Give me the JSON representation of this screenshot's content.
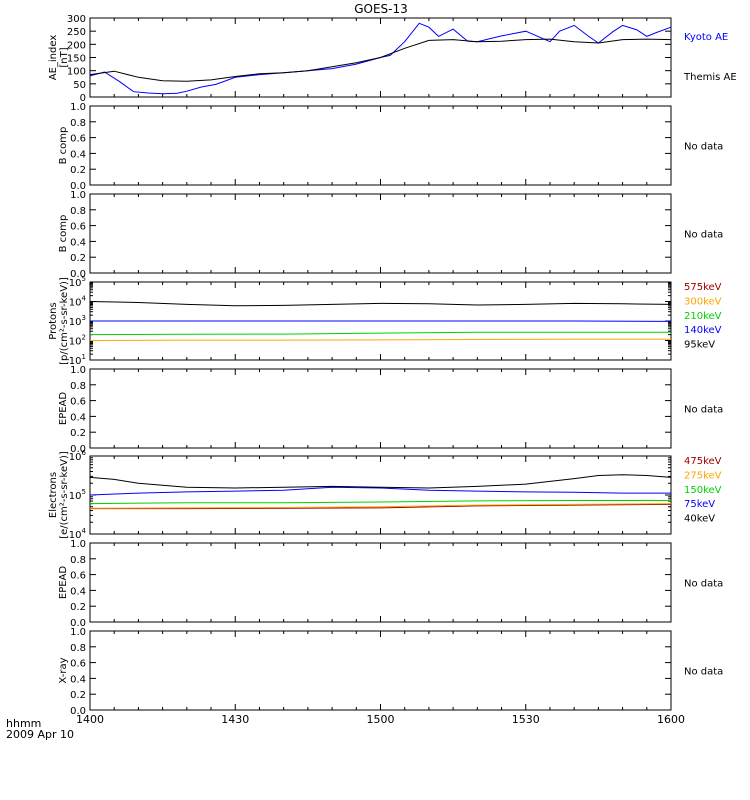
{
  "title": "GOES-13",
  "time_axis": {
    "unit_label": "hhmm",
    "date_label": "2009 Apr 10",
    "ticks": [
      "1400",
      "1430",
      "1500",
      "1530",
      "1600"
    ],
    "range_minutes": [
      0,
      120
    ]
  },
  "colors": {
    "black": "#000000",
    "blue": "#0000ff",
    "green": "#00d200",
    "orange": "#ffa500",
    "red": "#c80000",
    "darkred": "#a00000"
  },
  "chart_data": [
    {
      "type": "line",
      "ylabel_lines": [
        "AE_index",
        "[nT]"
      ],
      "yticks": [
        "0",
        "50",
        "100",
        "150",
        "200",
        "250",
        "300"
      ],
      "ylim": [
        0,
        300
      ],
      "scale": "linear",
      "series": [
        {
          "name": "Kyoto AE",
          "color": "#0000ff",
          "x": [
            0,
            3,
            6,
            9,
            12,
            15,
            18,
            20,
            23,
            26,
            30,
            35,
            40,
            45,
            50,
            55,
            60,
            62,
            65,
            68,
            70,
            72,
            75,
            78,
            80,
            85,
            90,
            95,
            97,
            100,
            103,
            105,
            108,
            110,
            113,
            115,
            117,
            120
          ],
          "y": [
            80,
            95,
            60,
            20,
            15,
            12,
            14,
            22,
            38,
            48,
            75,
            85,
            92,
            100,
            108,
            125,
            150,
            158,
            210,
            280,
            265,
            230,
            258,
            212,
            210,
            232,
            250,
            210,
            250,
            272,
            230,
            205,
            248,
            272,
            255,
            230,
            245,
            265
          ]
        },
        {
          "name": "Themis AE",
          "color": "#000000",
          "x": [
            0,
            5,
            10,
            15,
            20,
            25,
            30,
            35,
            40,
            45,
            50,
            55,
            60,
            65,
            70,
            75,
            80,
            85,
            90,
            95,
            100,
            105,
            110,
            115,
            120
          ],
          "y": [
            85,
            98,
            75,
            62,
            60,
            65,
            78,
            88,
            92,
            100,
            115,
            130,
            150,
            185,
            215,
            218,
            210,
            212,
            218,
            220,
            210,
            205,
            218,
            220,
            218
          ]
        }
      ],
      "legend_placement": "right"
    },
    {
      "type": "line",
      "ylabel_lines": [
        "B comp"
      ],
      "yticks": [
        "0.0",
        "0.2",
        "0.4",
        "0.6",
        "0.8",
        "1.0"
      ],
      "ylim": [
        0,
        1
      ],
      "scale": "linear",
      "series": [],
      "no_data": "No data"
    },
    {
      "type": "line",
      "ylabel_lines": [
        "B comp"
      ],
      "yticks": [
        "0.0",
        "0.2",
        "0.4",
        "0.6",
        "0.8",
        "1.0"
      ],
      "ylim": [
        0,
        1
      ],
      "scale": "linear",
      "series": [],
      "no_data": "No data"
    },
    {
      "type": "line",
      "ylabel_lines": [
        "Protons",
        "[p/(cm²-s-sr-keV)]"
      ],
      "yticks": [
        {
          "base": "10",
          "exp": "1"
        },
        {
          "base": "10",
          "exp": "2"
        },
        {
          "base": "10",
          "exp": "3"
        },
        {
          "base": "10",
          "exp": "4"
        },
        {
          "base": "10",
          "exp": "5"
        }
      ],
      "ylim": [
        1,
        5
      ],
      "scale": "log10",
      "series": [
        {
          "name": "575keV",
          "color": "#a00000",
          "x": [],
          "y": []
        },
        {
          "name": "300keV",
          "color": "#ffa500",
          "x": [
            0,
            20,
            40,
            60,
            80,
            100,
            120
          ],
          "y": [
            2.0,
            2.02,
            2.02,
            2.03,
            2.05,
            2.06,
            2.06
          ]
        },
        {
          "name": "210keV",
          "color": "#00d200",
          "x": [
            0,
            20,
            40,
            60,
            80,
            100,
            120
          ],
          "y": [
            2.3,
            2.32,
            2.33,
            2.38,
            2.42,
            2.42,
            2.42
          ]
        },
        {
          "name": "140keV",
          "color": "#0000ff",
          "x": [
            0,
            20,
            40,
            60,
            80,
            100,
            120
          ],
          "y": [
            3.0,
            3.0,
            3.0,
            3.0,
            3.0,
            3.0,
            2.98
          ]
        },
        {
          "name": "95keV",
          "color": "#000000",
          "x": [
            0,
            10,
            20,
            30,
            40,
            50,
            60,
            70,
            80,
            90,
            100,
            110,
            120
          ],
          "y": [
            4.0,
            3.95,
            3.85,
            3.78,
            3.8,
            3.85,
            3.9,
            3.88,
            3.82,
            3.85,
            3.9,
            3.88,
            3.85
          ]
        }
      ],
      "legend_placement": "right"
    },
    {
      "type": "line",
      "ylabel_lines": [
        "EPEAD"
      ],
      "yticks": [
        "0.0",
        "0.2",
        "0.4",
        "0.6",
        "0.8",
        "1.0"
      ],
      "ylim": [
        0,
        1
      ],
      "scale": "linear",
      "series": [],
      "no_data": "No data"
    },
    {
      "type": "line",
      "ylabel_lines": [
        "Electrons",
        "[e/(cm²-s-sr-keV)]"
      ],
      "yticks": [
        {
          "base": "10",
          "exp": "4"
        },
        {
          "base": "10",
          "exp": "5"
        },
        {
          "base": "10",
          "exp": "6"
        }
      ],
      "ylim": [
        4,
        6
      ],
      "scale": "log10",
      "series": [
        {
          "name": "475keV",
          "color": "#a00000",
          "x": [
            0,
            20,
            40,
            60,
            80,
            100,
            120
          ],
          "y": [
            4.65,
            4.65,
            4.66,
            4.67,
            4.72,
            4.74,
            4.76
          ]
        },
        {
          "name": "275keV",
          "color": "#ffa500",
          "x": [
            0,
            20,
            40,
            60,
            80,
            100,
            120
          ],
          "y": [
            4.66,
            4.67,
            4.68,
            4.7,
            4.74,
            4.76,
            4.78
          ]
        },
        {
          "name": "150keV",
          "color": "#00d200",
          "x": [
            0,
            20,
            40,
            60,
            80,
            100,
            120
          ],
          "y": [
            4.78,
            4.8,
            4.8,
            4.82,
            4.85,
            4.86,
            4.86
          ]
        },
        {
          "name": "75keV",
          "color": "#0000ff",
          "x": [
            0,
            10,
            20,
            30,
            40,
            50,
            60,
            70,
            80,
            90,
            100,
            110,
            120
          ],
          "y": [
            5.0,
            5.05,
            5.08,
            5.1,
            5.12,
            5.2,
            5.18,
            5.12,
            5.1,
            5.08,
            5.07,
            5.05,
            5.05
          ]
        },
        {
          "name": "40keV",
          "color": "#000000",
          "x": [
            0,
            5,
            10,
            15,
            20,
            30,
            40,
            50,
            60,
            70,
            80,
            90,
            95,
            100,
            105,
            110,
            115,
            120
          ],
          "y": [
            5.45,
            5.4,
            5.3,
            5.25,
            5.2,
            5.18,
            5.2,
            5.22,
            5.2,
            5.18,
            5.22,
            5.28,
            5.35,
            5.42,
            5.5,
            5.52,
            5.5,
            5.45
          ]
        }
      ],
      "legend_placement": "right"
    },
    {
      "type": "line",
      "ylabel_lines": [
        "EPEAD"
      ],
      "yticks": [
        "0.0",
        "0.2",
        "0.4",
        "0.6",
        "0.8",
        "1.0"
      ],
      "ylim": [
        0,
        1
      ],
      "scale": "linear",
      "series": [],
      "no_data": "No data"
    },
    {
      "type": "line",
      "ylabel_lines": [
        "X-ray"
      ],
      "yticks": [
        "0.0",
        "0.2",
        "0.4",
        "0.6",
        "0.8",
        "1.0"
      ],
      "ylim": [
        0,
        1
      ],
      "scale": "linear",
      "series": [],
      "no_data": "No data"
    }
  ]
}
